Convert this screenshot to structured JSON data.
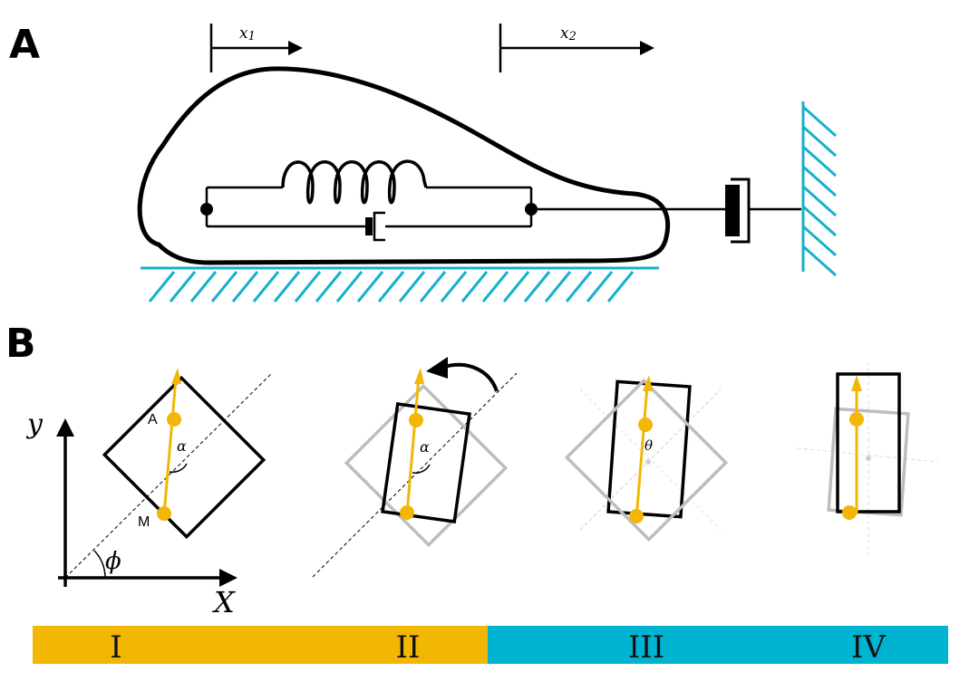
{
  "panels": {
    "a_label": "A",
    "b_label": "B"
  },
  "panel_a": {
    "x1_label": "x1",
    "x2_label": "x2",
    "x1_sub": "1",
    "x2_sub": "2"
  },
  "panel_b": {
    "y_axis_label": "y",
    "x_axis_label": "X",
    "phi_label": "ϕ",
    "alpha_label": "α",
    "theta_label": "θ",
    "point_a": "A",
    "point_m": "M"
  },
  "stages": [
    {
      "label": "I",
      "color": "#f2b705"
    },
    {
      "label": "II",
      "color": "#f2b705"
    },
    {
      "label": "III",
      "color": "#00b3d1"
    },
    {
      "label": "IV",
      "color": "#00b3d1"
    }
  ],
  "colors": {
    "ground": "#16b1cc",
    "axis_yellow": "#f2b705",
    "ghost_gray": "#bdbdbd",
    "stroke": "#000000"
  }
}
